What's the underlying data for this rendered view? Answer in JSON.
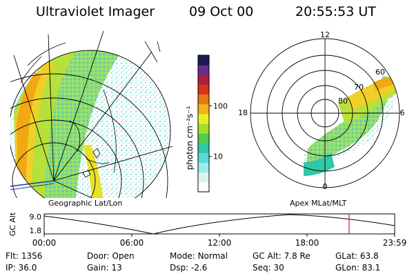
{
  "header": {
    "instrument": "Ultraviolet Imager",
    "date": "09 Oct 00",
    "time": "20:55:53 UT"
  },
  "colorbar": {
    "unit_label": "photon cm⁻²s⁻¹",
    "ticks": [
      {
        "value": 100,
        "label": "100"
      },
      {
        "value": 10,
        "label": "10"
      }
    ],
    "colors": [
      "#ffffff",
      "#d9f4f4",
      "#9cecec",
      "#5adbd7",
      "#2fc9a7",
      "#52cc52",
      "#a8dc2a",
      "#e8f02a",
      "#f2b414",
      "#e67a12",
      "#d63516",
      "#b0203c",
      "#6a2c8a",
      "#1a1a55"
    ]
  },
  "left_panel": {
    "projection_label": "Geographic Lat/Lon"
  },
  "right_panel": {
    "projection_label": "Apex MLat/MLT",
    "mlt_labels": {
      "top": "12",
      "left": "18",
      "right": "6",
      "bottom": "0"
    },
    "lat_labels": [
      "60",
      "70",
      "80"
    ]
  },
  "altitude_plot": {
    "axis_label": "GC Alt",
    "ymax_label": "9.0",
    "ymin_label": "1.8",
    "time_ticks": [
      "00:00",
      "06:00",
      "12:00",
      "18:00",
      "23:59"
    ],
    "marker_color": "#e01818"
  },
  "info": {
    "row1": [
      {
        "key": "Flt:",
        "value": "1356"
      },
      {
        "key": "Door:",
        "value": "Open"
      },
      {
        "key": "Mode:",
        "value": "Normal"
      },
      {
        "key": "GC Alt:",
        "value": "7.8 Re"
      },
      {
        "key": "GLat:",
        "value": "63.8"
      }
    ],
    "row2": [
      {
        "key": "IP:",
        "value": "36.0"
      },
      {
        "key": "Gain:",
        "value": "13"
      },
      {
        "key": "Dsp:",
        "value": "-2.6"
      },
      {
        "key": "Seq:",
        "value": "30"
      },
      {
        "key": "GLon:",
        "value": "83.1"
      }
    ]
  }
}
